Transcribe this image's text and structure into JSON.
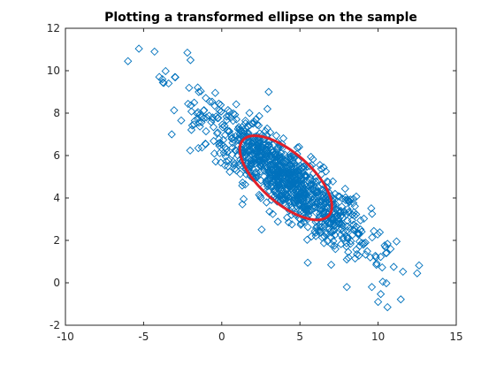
{
  "chart_data": {
    "type": "scatter",
    "title": "Plotting a transformed ellipse on the sample",
    "xlabel": "",
    "ylabel": "",
    "xlim": [
      -10,
      15
    ],
    "ylim": [
      -2,
      12
    ],
    "xticks": [
      -10,
      -5,
      0,
      5,
      10,
      15
    ],
    "yticks": [
      -2,
      0,
      2,
      4,
      6,
      8,
      10,
      12
    ],
    "xtick_labels": [
      "-10",
      "-5",
      "0",
      "5",
      "10",
      "15"
    ],
    "ytick_labels": [
      "-2",
      "0",
      "2",
      "4",
      "6",
      "8",
      "10",
      "12"
    ],
    "grid": false,
    "legend": "none",
    "colors": {
      "points": "#0072BD",
      "ellipse": "#e0202a",
      "axes": "#262626"
    },
    "series": [
      {
        "type": "scatter",
        "marker": "diamond-open",
        "approx_count": 1000,
        "distribution": {
          "mean": [
            4.1,
            4.9
          ],
          "std": [
            2.7,
            1.7
          ],
          "correlation": -0.88
        },
        "outlier_points": [
          [
            -6.0,
            10.45
          ],
          [
            -4.3,
            10.9
          ],
          [
            -2.2,
            10.85
          ],
          [
            -2.0,
            10.5
          ],
          [
            -3.8,
            9.6
          ],
          [
            -3.4,
            9.4
          ],
          [
            -3.0,
            9.7
          ],
          [
            -3.2,
            7.0
          ],
          [
            -1.5,
            6.35
          ],
          [
            1.4,
            3.95
          ],
          [
            3.0,
            9.0
          ],
          [
            5.5,
            0.95
          ],
          [
            7.0,
            0.85
          ],
          [
            8.0,
            -0.2
          ],
          [
            9.6,
            -0.2
          ],
          [
            10.3,
            0.05
          ],
          [
            10.0,
            -0.9
          ],
          [
            10.6,
            -1.15
          ],
          [
            12.5,
            0.45
          ],
          [
            11.0,
            0.75
          ],
          [
            10.8,
            1.6
          ],
          [
            9.5,
            1.2
          ],
          [
            8.0,
            1.1
          ],
          [
            10.5,
            1.4
          ]
        ]
      },
      {
        "type": "line",
        "shape": "ellipse",
        "center": [
          4.1,
          4.95
        ],
        "vertices": [
          [
            1.3,
            6.75
          ],
          [
            6.8,
            3.2
          ]
        ],
        "minor_axis_width": 1.0
      }
    ]
  }
}
